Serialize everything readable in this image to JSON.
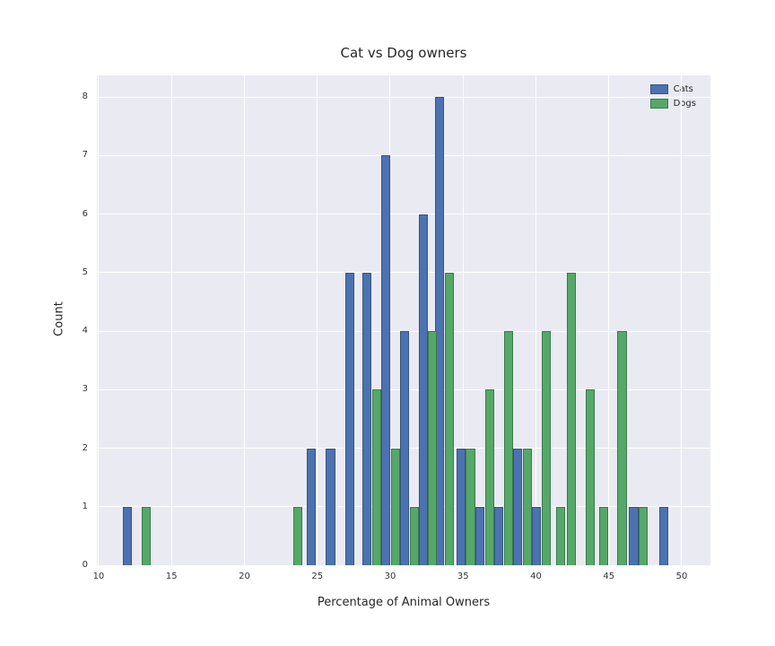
{
  "figure": {
    "title": "Cat vs Dog owners",
    "xlabel": "Percentage of Animal Owners",
    "ylabel": "Count"
  },
  "colors": {
    "plot_background": "#eaeaf2",
    "grid": "#ffffff",
    "cats": "#4c72b0",
    "cats_edge": "#35567f",
    "dogs": "#55a868",
    "dogs_edge": "#3b7a4d",
    "text": "#262626"
  },
  "chart_data": {
    "type": "bar",
    "title": "Cat vs Dog owners",
    "xlabel": "Percentage of Animal Owners",
    "ylabel": "Count",
    "xlim": [
      9.88,
      51.97
    ],
    "ylim": [
      0,
      8.37
    ],
    "xticks": [
      10,
      15,
      20,
      25,
      30,
      35,
      40,
      45,
      50
    ],
    "yticks": [
      0,
      1,
      2,
      3,
      4,
      5,
      6,
      7,
      8
    ],
    "grid": true,
    "legend_position": "upper right",
    "bar_width": 0.62,
    "series": [
      {
        "name": "Cats",
        "color": "#4c72b0",
        "edge": "#35567f",
        "bars": [
          {
            "x": 11.65,
            "count": 1
          },
          {
            "x": 24.3,
            "count": 2
          },
          {
            "x": 25.6,
            "count": 2
          },
          {
            "x": 26.9,
            "count": 5
          },
          {
            "x": 28.1,
            "count": 5
          },
          {
            "x": 29.4,
            "count": 7
          },
          {
            "x": 30.7,
            "count": 4
          },
          {
            "x": 31.95,
            "count": 6
          },
          {
            "x": 33.1,
            "count": 8
          },
          {
            "x": 34.55,
            "count": 2
          },
          {
            "x": 35.85,
            "count": 1
          },
          {
            "x": 37.15,
            "count": 1
          },
          {
            "x": 38.45,
            "count": 2
          },
          {
            "x": 39.75,
            "count": 1
          },
          {
            "x": 46.4,
            "count": 1
          },
          {
            "x": 48.45,
            "count": 1
          }
        ]
      },
      {
        "name": "Dogs",
        "color": "#55a868",
        "edge": "#3b7a4d",
        "bars": [
          {
            "x": 12.95,
            "count": 1
          },
          {
            "x": 23.35,
            "count": 1
          },
          {
            "x": 28.75,
            "count": 3
          },
          {
            "x": 30.05,
            "count": 2
          },
          {
            "x": 31.35,
            "count": 1
          },
          {
            "x": 32.6,
            "count": 4
          },
          {
            "x": 33.75,
            "count": 5
          },
          {
            "x": 35.2,
            "count": 2
          },
          {
            "x": 36.5,
            "count": 3
          },
          {
            "x": 37.8,
            "count": 4
          },
          {
            "x": 39.1,
            "count": 2
          },
          {
            "x": 40.4,
            "count": 4
          },
          {
            "x": 41.4,
            "count": 1
          },
          {
            "x": 42.1,
            "count": 5
          },
          {
            "x": 43.4,
            "count": 3
          },
          {
            "x": 44.35,
            "count": 1
          },
          {
            "x": 45.6,
            "count": 4
          },
          {
            "x": 47.05,
            "count": 1
          }
        ]
      }
    ]
  }
}
